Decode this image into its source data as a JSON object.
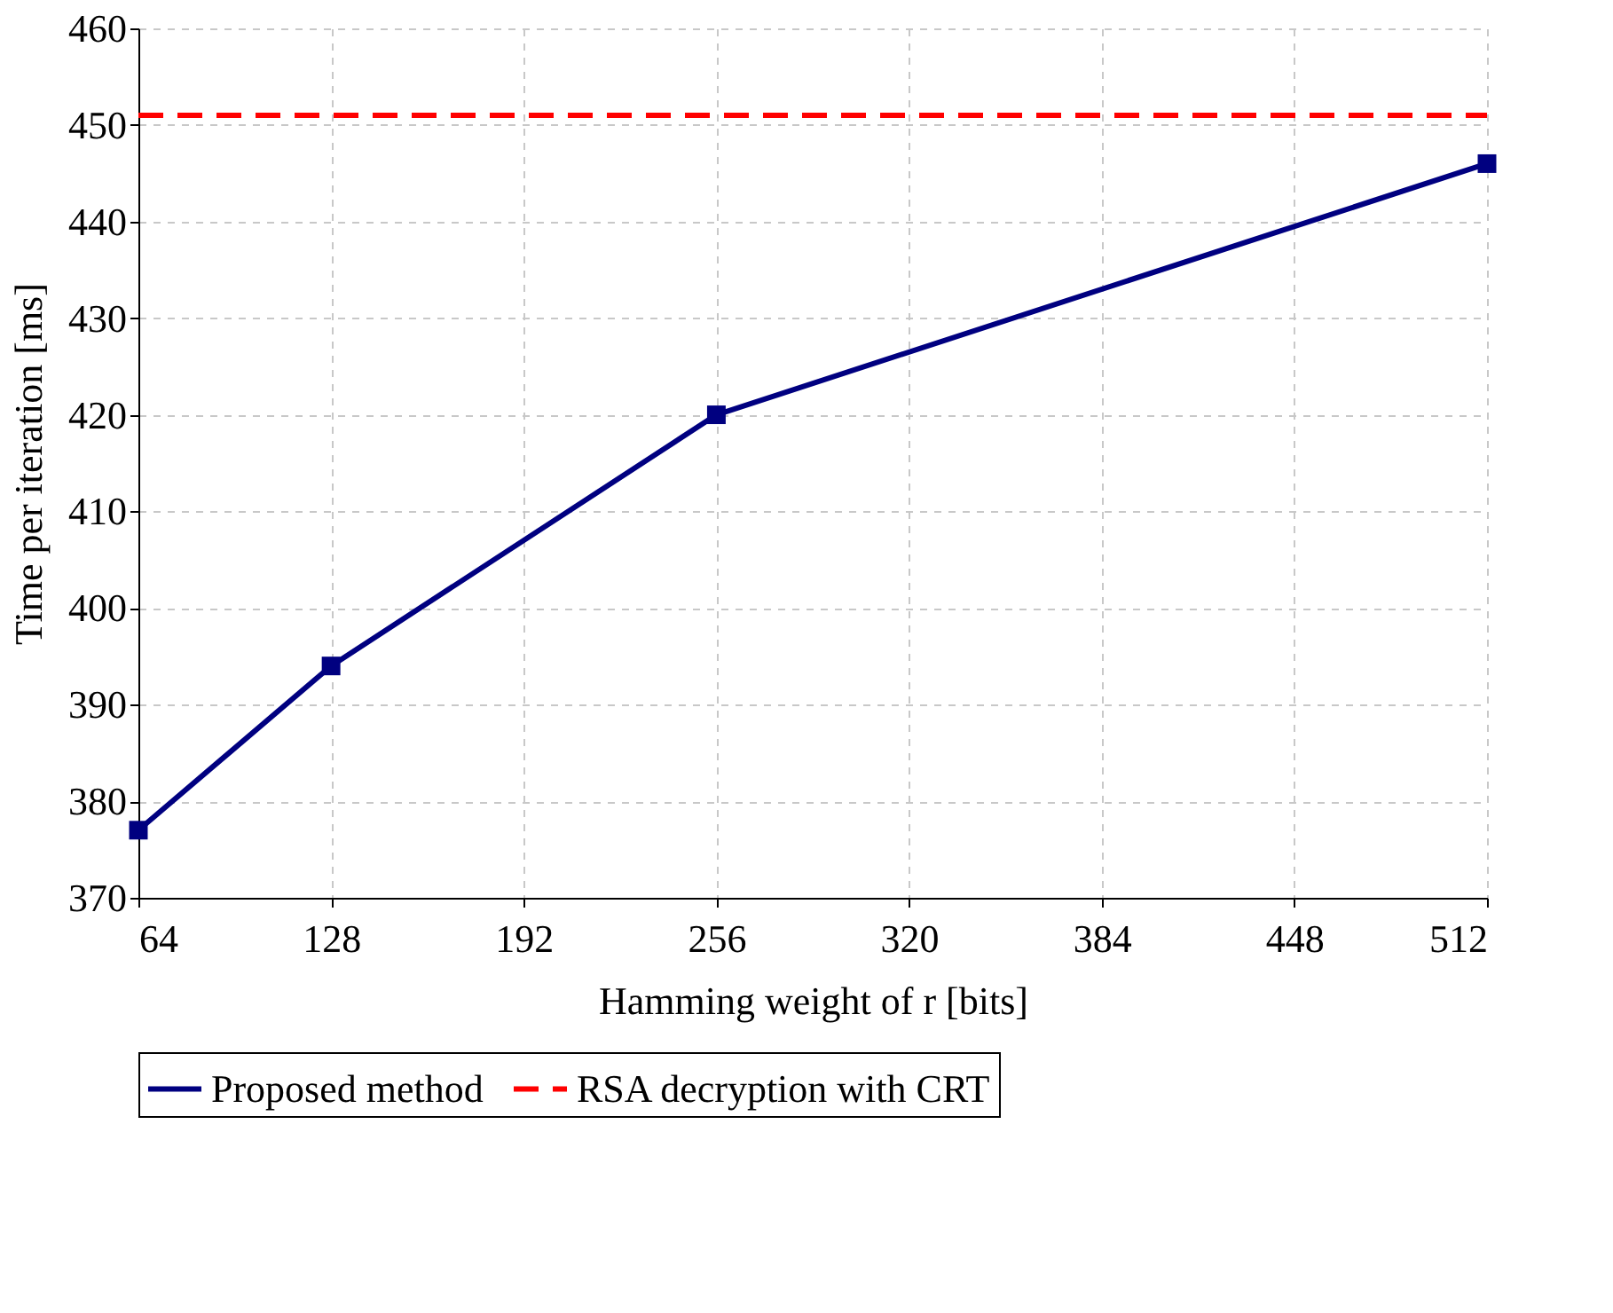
{
  "chart_data": {
    "type": "line",
    "xlabel": "Hamming weight of r [bits]",
    "ylabel": "Time per iteration [ms]",
    "x": [
      64,
      128,
      256,
      512
    ],
    "series": [
      {
        "name": "Proposed method",
        "color": "#000080",
        "values": [
          377,
          394,
          420,
          446
        ],
        "marker": "square",
        "line_style": "solid"
      },
      {
        "name": "RSA decryption with CRT",
        "color": "#ff0000",
        "x": [
          64,
          512
        ],
        "values": [
          451,
          451
        ],
        "marker": "none",
        "line_style": "dashed"
      }
    ],
    "xlim": [
      64,
      512
    ],
    "xticks": [
      64,
      128,
      192,
      256,
      320,
      384,
      448,
      512
    ],
    "ylim": [
      370,
      460
    ],
    "yticks": [
      370,
      380,
      390,
      400,
      410,
      420,
      430,
      440,
      450,
      460
    ],
    "grid": true,
    "legend": "bottom"
  }
}
